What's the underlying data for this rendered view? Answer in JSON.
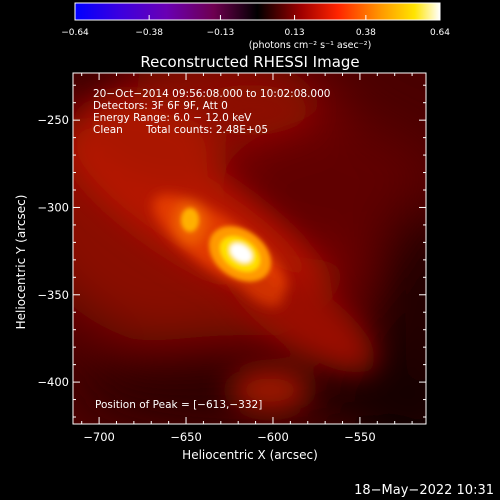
{
  "chart_data": {
    "type": "heatmap",
    "title": "Reconstructed RHESSI Image",
    "xlabel": "Heliocentric X (arcsec)",
    "ylabel": "Heliocentric Y (arcsec)",
    "xlim": [
      -715,
      -512
    ],
    "ylim": [
      -424,
      -223
    ],
    "x_ticks": [
      -700,
      -650,
      -600,
      -550
    ],
    "y_ticks": [
      -400,
      -350,
      -300,
      -250
    ],
    "x_tick_labels": [
      "−700",
      "−650",
      "−600",
      "−550"
    ],
    "y_tick_labels": [
      "−400",
      "−350",
      "−300",
      "−250"
    ],
    "colorbar": {
      "range": [
        -0.64,
        0.64
      ],
      "tick_labels": [
        "−0.64",
        "−0.38",
        "−0.13",
        "0.13",
        "0.38",
        "0.64"
      ],
      "units_label": "(photons cm⁻² s⁻¹ asec⁻²)",
      "colors": [
        "#0000ff",
        "#5b00c8",
        "#7d0082",
        "#000000",
        "#990000",
        "#ff2000",
        "#ff9000",
        "#ffe000",
        "#ffffff"
      ]
    },
    "annotations": {
      "time": "20−Oct−2014 09:56:08.000 to 10:02:08.000",
      "detectors": "Detectors: 3F 6F 9F, Att 0",
      "energy": "Energy Range: 6.0 − 12.0 keV",
      "clean": "Clean",
      "counts": "Total counts: 2.48E+05",
      "peak": "Position of Peak = [−613,−332]"
    },
    "peak": {
      "x": -613,
      "y": -332
    }
  },
  "footer": {
    "timestamp": "18−May−2022 10:31"
  }
}
